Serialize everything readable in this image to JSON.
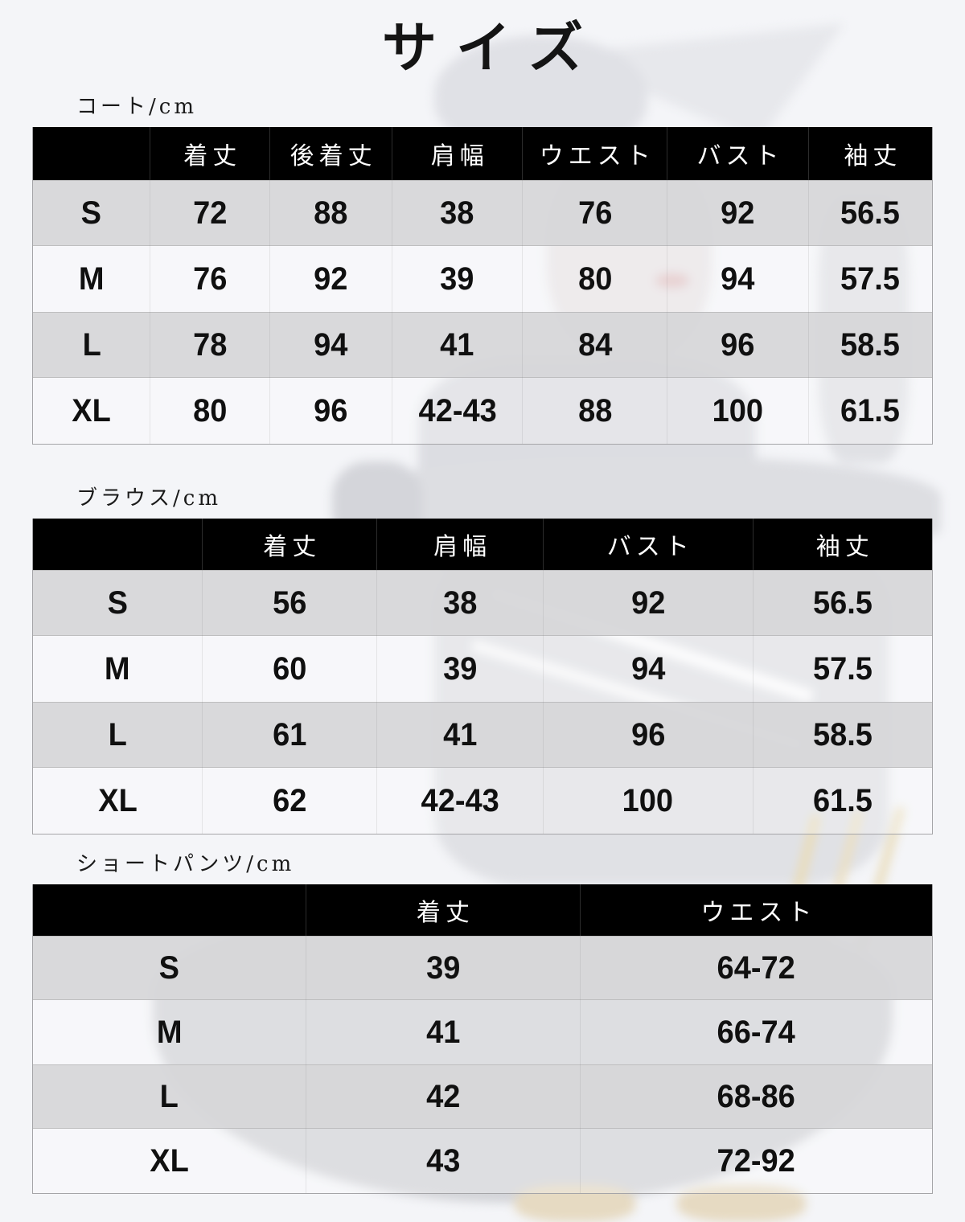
{
  "page": {
    "title": "サイズ",
    "colors": {
      "header_bg": "#000000",
      "row_gray": "#d7d7d9",
      "page_bg": "#f4f5f8",
      "text": "#101010"
    }
  },
  "tables": [
    {
      "id": "coat",
      "label": "コート/cm",
      "headers": [
        "",
        "着丈",
        "後着丈",
        "肩幅",
        "ウエスト",
        "バスト",
        "袖丈"
      ],
      "col_widths": [
        "13.1%",
        "13.3%",
        "13.6%",
        "14.5%",
        "16.1%",
        "15.7%",
        "13.7%"
      ],
      "rows": [
        [
          "S",
          "72",
          "88",
          "38",
          "76",
          "92",
          "56.5"
        ],
        [
          "M",
          "76",
          "92",
          "39",
          "80",
          "94",
          "57.5"
        ],
        [
          "L",
          "78",
          "94",
          "41",
          "84",
          "96",
          "58.5"
        ],
        [
          "XL",
          "80",
          "96",
          "42-43",
          "88",
          "100",
          "61.5"
        ]
      ]
    },
    {
      "id": "blouse",
      "label": "ブラウス/cm",
      "headers": [
        "",
        "着丈",
        "肩幅",
        "バスト",
        "袖丈"
      ],
      "col_widths": [
        "18.9%",
        "19.4%",
        "18.5%",
        "23.3%",
        "19.9%"
      ],
      "rows": [
        [
          "S",
          "56",
          "38",
          "92",
          "56.5"
        ],
        [
          "M",
          "60",
          "39",
          "94",
          "57.5"
        ],
        [
          "L",
          "61",
          "41",
          "96",
          "58.5"
        ],
        [
          "XL",
          "62",
          "42-43",
          "100",
          "61.5"
        ]
      ]
    },
    {
      "id": "shorts",
      "label": "ショートパンツ/cm",
      "headers": [
        "",
        "着丈",
        "ウエスト"
      ],
      "col_widths": [
        "30.4%",
        "30.5%",
        "39.1%"
      ],
      "rows": [
        [
          "S",
          "39",
          "64-72"
        ],
        [
          "M",
          "41",
          "66-74"
        ],
        [
          "L",
          "42",
          "68-86"
        ],
        [
          "XL",
          "43",
          "72-92"
        ]
      ]
    }
  ]
}
